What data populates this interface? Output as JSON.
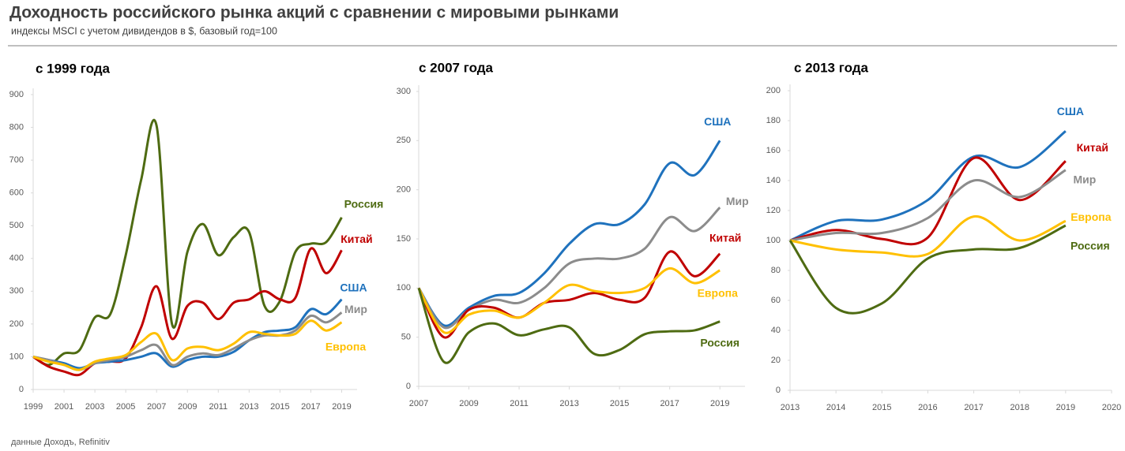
{
  "header": {
    "title": "Доходность российского рынка акций с сравнении с мировыми рынками",
    "subtitle": "индексы MSCI с учетом дивидендов в $, базовый год=100"
  },
  "source": "данные Доходъ, Refinitiv",
  "chart_data": [
    {
      "type": "line",
      "title": "с 1999 года",
      "x": [
        1999,
        2000,
        2001,
        2002,
        2003,
        2004,
        2005,
        2006,
        2007,
        2008,
        2009,
        2010,
        2011,
        2012,
        2013,
        2014,
        2015,
        2016,
        2017,
        2018,
        2019
      ],
      "xlim": [
        1999,
        2020
      ],
      "xticks": [
        1999,
        2001,
        2003,
        2005,
        2007,
        2009,
        2011,
        2013,
        2015,
        2017,
        2019
      ],
      "ylim": [
        0,
        900
      ],
      "yticks": [
        0,
        100,
        200,
        300,
        400,
        500,
        600,
        700,
        800,
        900
      ],
      "series": [
        {
          "name": "Россия",
          "color": "#4e6b12",
          "values": [
            100,
            75,
            110,
            120,
            220,
            230,
            410,
            640,
            805,
            200,
            420,
            505,
            410,
            465,
            480,
            255,
            270,
            420,
            445,
            450,
            525
          ]
        },
        {
          "name": "Китай",
          "color": "#c00000",
          "values": [
            100,
            70,
            55,
            45,
            80,
            85,
            95,
            190,
            315,
            155,
            255,
            265,
            215,
            265,
            275,
            300,
            275,
            280,
            430,
            355,
            425
          ]
        },
        {
          "name": "США",
          "color": "#1f72bd",
          "values": [
            100,
            90,
            80,
            65,
            80,
            85,
            90,
            100,
            110,
            70,
            90,
            100,
            100,
            115,
            150,
            175,
            180,
            190,
            245,
            230,
            275
          ]
        },
        {
          "name": "Мир",
          "color": "#8c8c8c",
          "values": [
            100,
            90,
            75,
            60,
            80,
            90,
            100,
            120,
            135,
            75,
            100,
            110,
            105,
            125,
            150,
            165,
            165,
            180,
            225,
            205,
            235
          ]
        },
        {
          "name": "Европа",
          "color": "#ffc000",
          "values": [
            100,
            85,
            75,
            60,
            85,
            95,
            105,
            145,
            170,
            90,
            125,
            130,
            120,
            140,
            175,
            170,
            165,
            170,
            210,
            180,
            205
          ]
        }
      ]
    },
    {
      "type": "line",
      "title": "с 2007 года",
      "x": [
        2007,
        2008,
        2009,
        2010,
        2011,
        2012,
        2013,
        2014,
        2015,
        2016,
        2017,
        2018,
        2019
      ],
      "xlim": [
        2007,
        2020
      ],
      "xticks": [
        2007,
        2009,
        2011,
        2013,
        2015,
        2017,
        2019
      ],
      "ylim": [
        0,
        300
      ],
      "yticks": [
        0,
        50,
        100,
        150,
        200,
        250,
        300
      ],
      "series": [
        {
          "name": "США",
          "color": "#1f72bd",
          "values": [
            100,
            62,
            80,
            92,
            95,
            115,
            145,
            165,
            165,
            185,
            227,
            215,
            250
          ]
        },
        {
          "name": "Мир",
          "color": "#8c8c8c",
          "values": [
            100,
            60,
            78,
            88,
            85,
            100,
            125,
            130,
            130,
            140,
            172,
            158,
            182
          ]
        },
        {
          "name": "Китай",
          "color": "#c00000",
          "values": [
            100,
            50,
            78,
            80,
            70,
            85,
            88,
            95,
            88,
            90,
            137,
            112,
            135
          ]
        },
        {
          "name": "Европа",
          "color": "#ffc000",
          "values": [
            100,
            55,
            73,
            77,
            70,
            85,
            103,
            97,
            95,
            100,
            120,
            105,
            118
          ]
        },
        {
          "name": "Россия",
          "color": "#4e6b12",
          "values": [
            100,
            25,
            55,
            64,
            52,
            58,
            60,
            33,
            37,
            53,
            56,
            57,
            66
          ]
        }
      ]
    },
    {
      "type": "line",
      "title": "с  2013 года",
      "x": [
        2013,
        2014,
        2015,
        2016,
        2017,
        2018,
        2019
      ],
      "xlim": [
        2013,
        2020
      ],
      "xticks": [
        2013,
        2014,
        2015,
        2016,
        2017,
        2018,
        2019,
        2020
      ],
      "ylim": [
        0,
        200
      ],
      "yticks": [
        0,
        20,
        40,
        60,
        80,
        100,
        120,
        140,
        160,
        180,
        200
      ],
      "series": [
        {
          "name": "США",
          "color": "#1f72bd",
          "values": [
            100,
            113,
            114,
            127,
            156,
            149,
            173
          ]
        },
        {
          "name": "Китай",
          "color": "#c00000",
          "values": [
            100,
            107,
            101,
            102,
            155,
            127,
            153
          ]
        },
        {
          "name": "Мир",
          "color": "#8c8c8c",
          "values": [
            100,
            105,
            105,
            115,
            140,
            129,
            147
          ]
        },
        {
          "name": "Европа",
          "color": "#ffc000",
          "values": [
            100,
            94,
            92,
            91,
            116,
            100,
            113
          ]
        },
        {
          "name": "Россия",
          "color": "#4e6b12",
          "values": [
            100,
            55,
            58,
            88,
            94,
            95,
            110
          ]
        }
      ]
    }
  ]
}
